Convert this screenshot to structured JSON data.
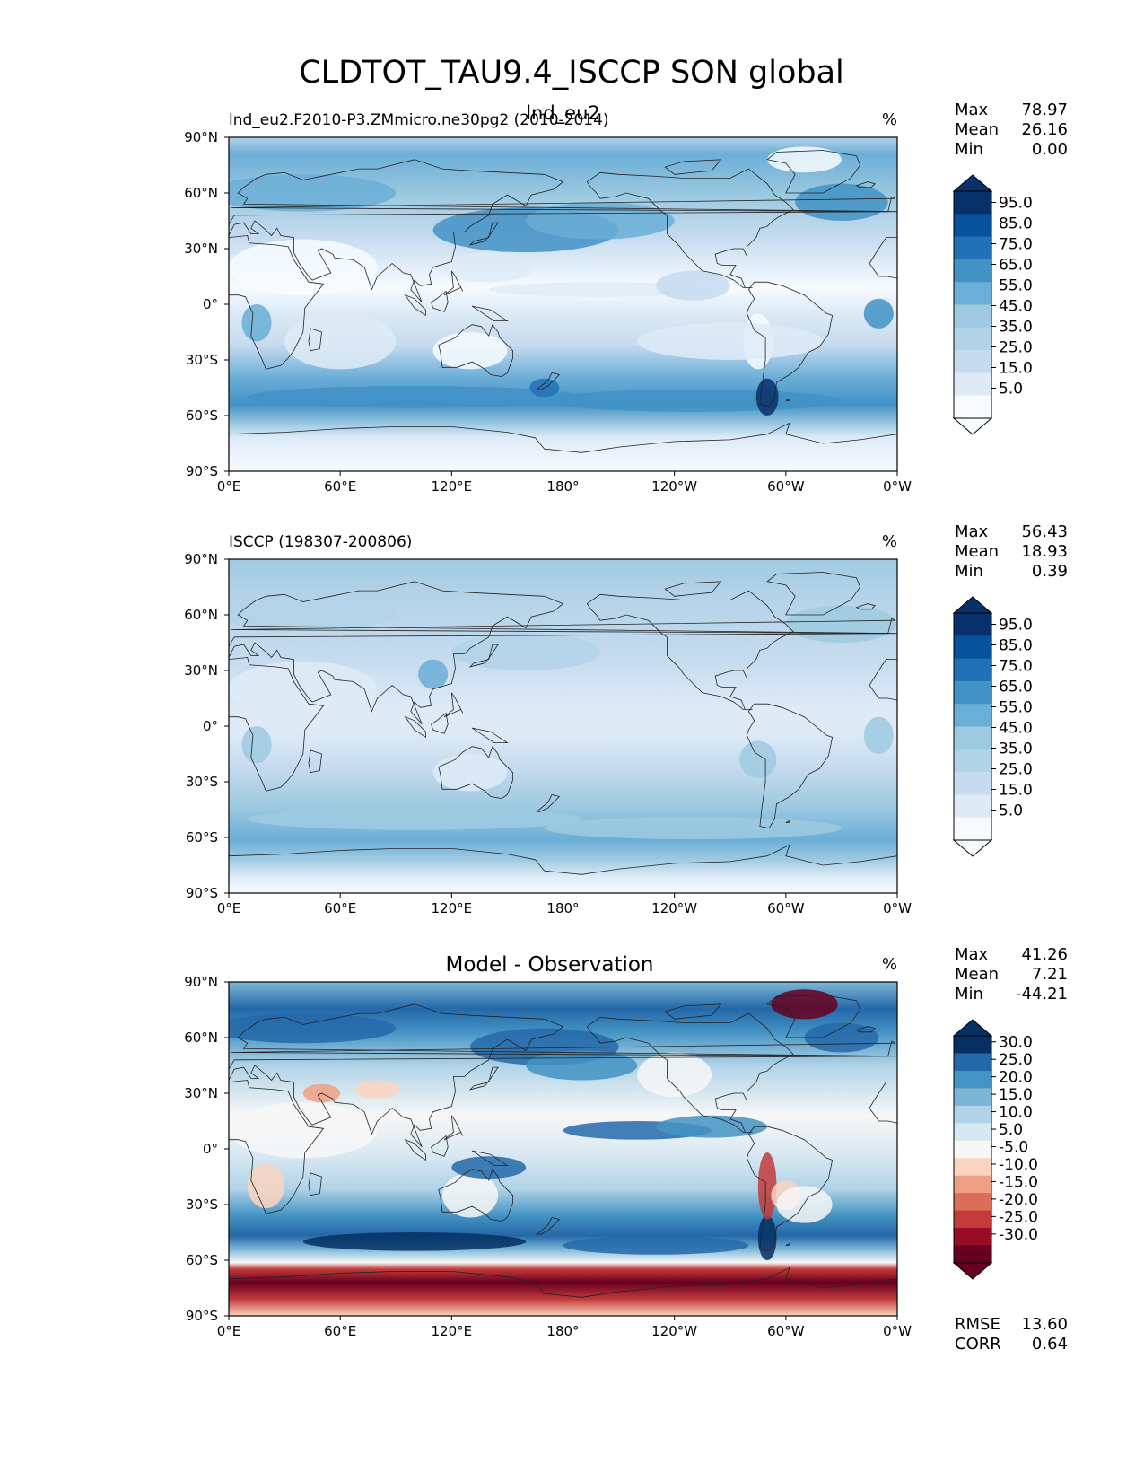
{
  "figure": {
    "title": "CLDTOT_TAU9.4_ISCCP SON global"
  },
  "colors": {
    "blues": [
      "#f7fbff",
      "#deebf7",
      "#c6dbef",
      "#b2d2e8",
      "#9ecae1",
      "#6baed6",
      "#4292c6",
      "#2171b5",
      "#08519c",
      "#08306b"
    ],
    "diverging": [
      "#67001f",
      "#980c24",
      "#c23b3b",
      "#dc6d56",
      "#eea083",
      "#fbd4bf",
      "#f7f7f7",
      "#d8e8f2",
      "#b0d3e7",
      "#7cb6d7",
      "#4393c3",
      "#2468a9",
      "#053061"
    ]
  },
  "x_ticks": [
    "0°E",
    "60°E",
    "120°E",
    "180°",
    "120°W",
    "60°W",
    "0°W"
  ],
  "y_ticks": [
    "90°N",
    "60°N",
    "30°N",
    "0°",
    "30°S",
    "60°S",
    "90°S"
  ],
  "panels": [
    {
      "id": "test",
      "left_title": "lnd_eu2.F2010-P3.ZMmicro.ne30pg2 (2010-2014)",
      "center_title": "lnd_eu2",
      "units": "%",
      "stats": [
        {
          "label": "Max",
          "value": "78.97"
        },
        {
          "label": "Mean",
          "value": "26.16"
        },
        {
          "label": "Min",
          "value": "0.00"
        }
      ],
      "colorbar": {
        "palette": "blues",
        "tick_labels": [
          "95.0",
          "85.0",
          "75.0",
          "65.0",
          "55.0",
          "45.0",
          "35.0",
          "25.0",
          "15.0",
          "5.0"
        ]
      }
    },
    {
      "id": "reference",
      "left_title": "ISCCP (198307-200806)",
      "center_title": "",
      "units": "%",
      "stats": [
        {
          "label": "Max",
          "value": "56.43"
        },
        {
          "label": "Mean",
          "value": "18.93"
        },
        {
          "label": "Min",
          "value": "0.39"
        }
      ],
      "colorbar": {
        "palette": "blues",
        "tick_labels": [
          "95.0",
          "85.0",
          "75.0",
          "65.0",
          "55.0",
          "45.0",
          "35.0",
          "25.0",
          "15.0",
          "5.0"
        ]
      }
    },
    {
      "id": "difference",
      "left_title": "",
      "center_title": "Model - Observation",
      "units": "%",
      "stats": [
        {
          "label": "Max",
          "value": "41.26"
        },
        {
          "label": "Mean",
          "value": "7.21"
        },
        {
          "label": "Min",
          "value": "-44.21"
        }
      ],
      "colorbar": {
        "palette": "diverging",
        "tick_labels": [
          "30.0",
          "25.0",
          "20.0",
          "15.0",
          "10.0",
          "5.0",
          "-5.0",
          "-10.0",
          "-15.0",
          "-20.0",
          "-25.0",
          "-30.0"
        ]
      },
      "metrics": [
        {
          "label": "RMSE",
          "value": "13.60"
        },
        {
          "label": "CORR",
          "value": "0.64"
        }
      ]
    }
  ]
}
